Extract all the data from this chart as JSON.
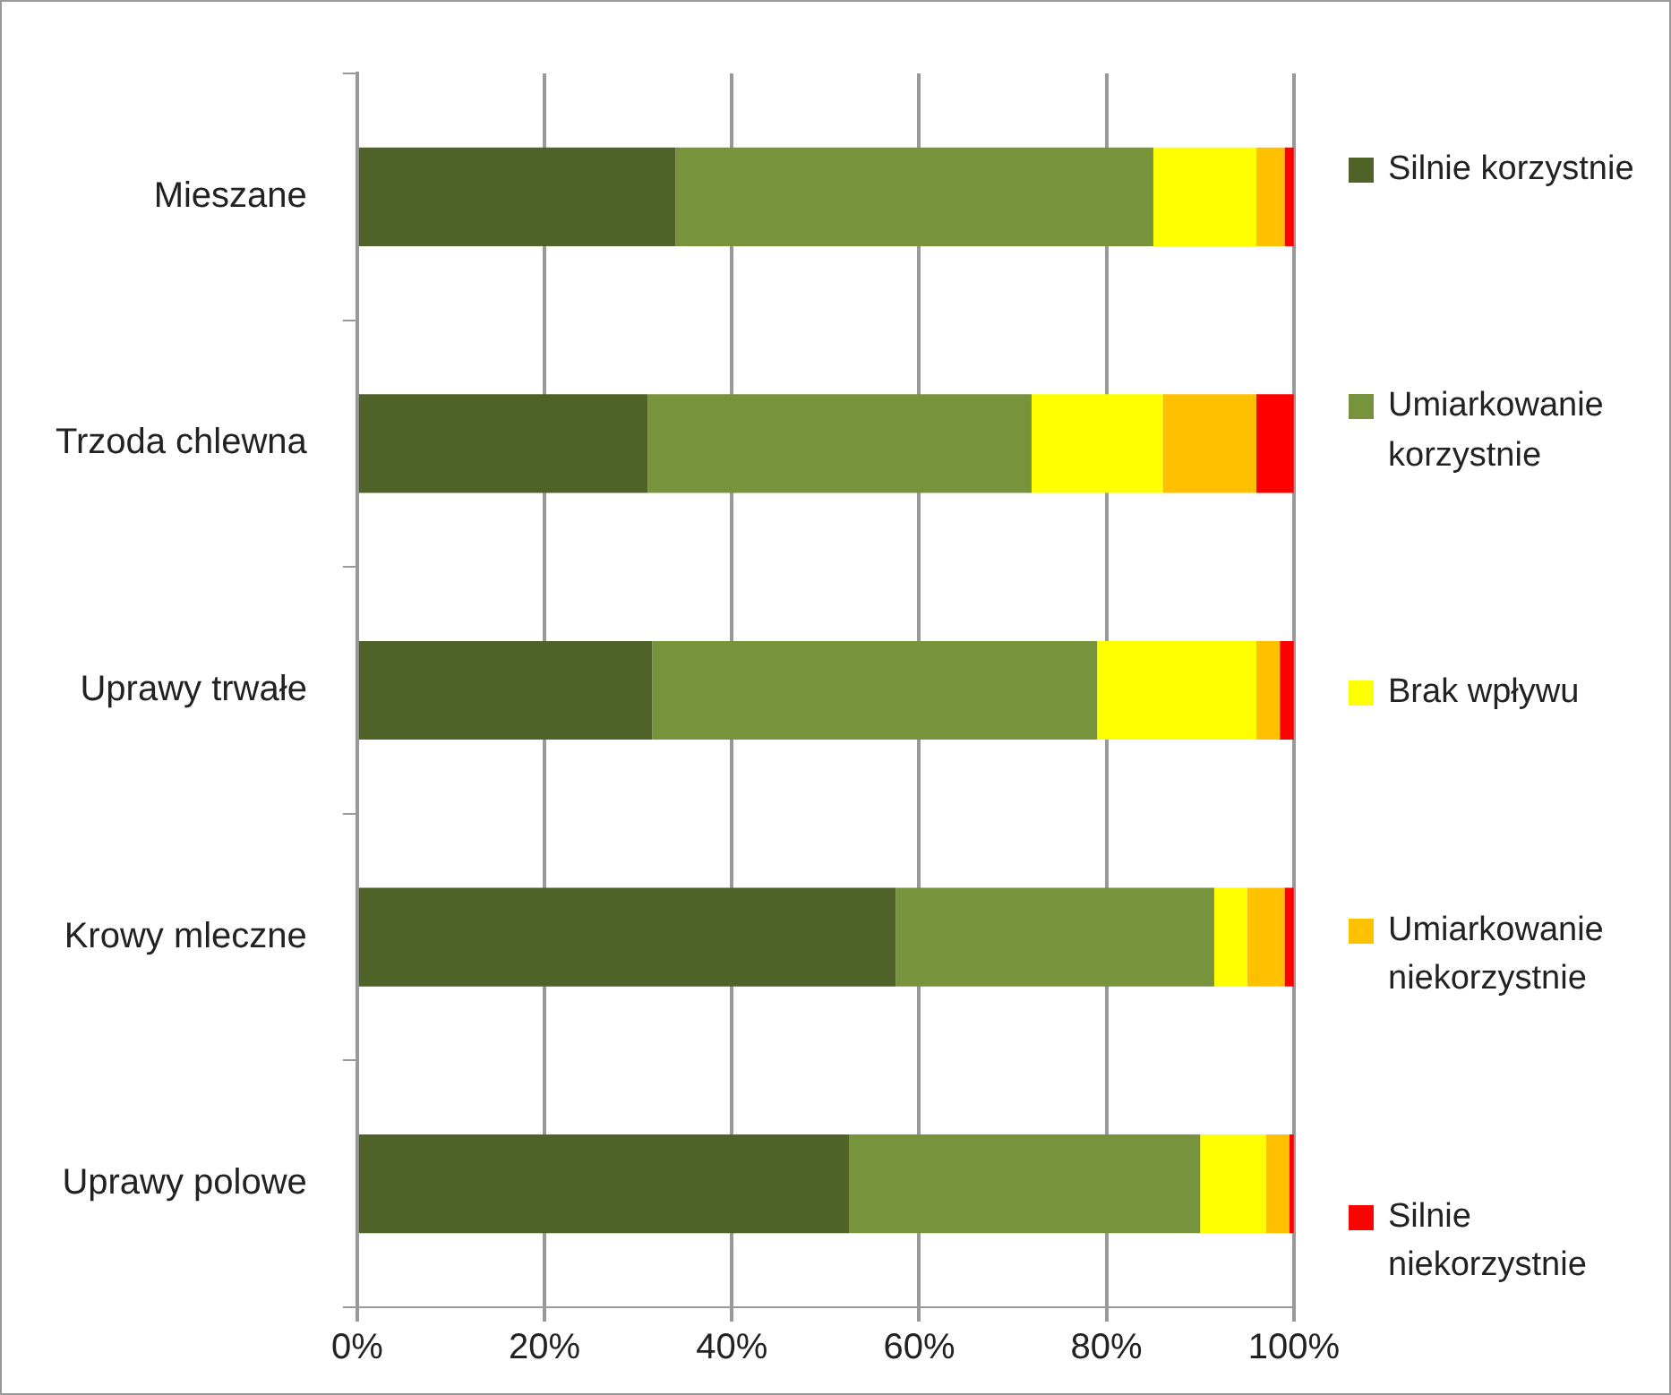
{
  "chart_data": {
    "type": "bar",
    "orientation": "horizontal",
    "stacked": true,
    "categories": [
      "Mieszane",
      "Trzoda chlewna",
      "Uprawy trwałe",
      "Krowy mleczne",
      "Uprawy polowe"
    ],
    "series": [
      {
        "name": "Silnie korzystnie",
        "color": "#4f6228",
        "values": [
          34,
          31,
          31.5,
          57.5,
          52.5
        ]
      },
      {
        "name": "Umiarkowanie korzystnie",
        "color": "#77933c",
        "values": [
          51,
          41,
          47.5,
          34,
          37.5
        ]
      },
      {
        "name": "Brak wpływu",
        "color": "#ffff00",
        "values": [
          11,
          14,
          17,
          3.5,
          7
        ]
      },
      {
        "name": "Umiarkowanie niekorzystnie",
        "color": "#ffc000",
        "values": [
          3,
          10,
          2.5,
          4,
          2.5
        ]
      },
      {
        "name": "Silnie niekorzystnie",
        "color": "#ff0000",
        "values": [
          1,
          4,
          1.5,
          1,
          0.5
        ]
      }
    ],
    "xlim": [
      0,
      100
    ],
    "xticks": [
      {
        "value": 0,
        "label": "0%"
      },
      {
        "value": 20,
        "label": "20%"
      },
      {
        "value": 40,
        "label": "40%"
      },
      {
        "value": 60,
        "label": "60%"
      },
      {
        "value": 80,
        "label": "80%"
      },
      {
        "value": 100,
        "label": "100%"
      }
    ],
    "grid": "x",
    "legend": "right"
  }
}
